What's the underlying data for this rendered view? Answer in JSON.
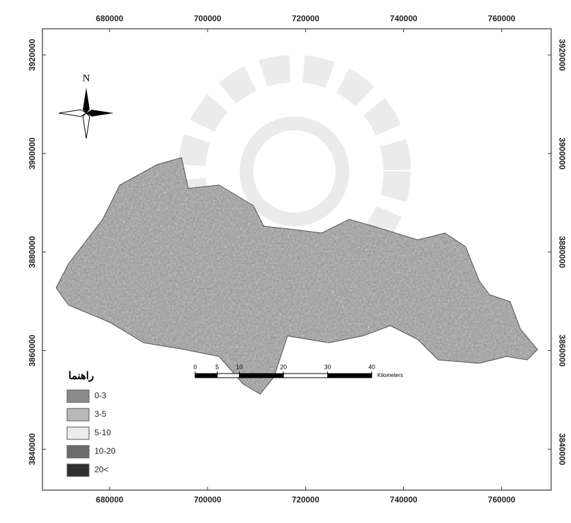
{
  "map": {
    "xlim": [
      666300,
      770100
    ],
    "ylim": [
      3831700,
      3925300
    ],
    "x_ticks": [
      680000,
      700000,
      720000,
      740000,
      760000
    ],
    "y_ticks": [
      3840000,
      3860000,
      3880000,
      3900000,
      3920000
    ],
    "north": "N",
    "legend": {
      "title": "راهنما",
      "items": [
        {
          "label": "0-3",
          "color": "#8c8c8c"
        },
        {
          "label": "3-5",
          "color": "#b8b8b8"
        },
        {
          "label": "5-10",
          "color": "#ececec"
        },
        {
          "label": "10-20",
          "color": "#6c6c6c"
        },
        {
          "label": "20<",
          "color": "#2e2e2e"
        }
      ]
    },
    "scale_bar": {
      "ticks": [
        0,
        5,
        10,
        20,
        30,
        40
      ],
      "unit": "Kilometers"
    }
  }
}
